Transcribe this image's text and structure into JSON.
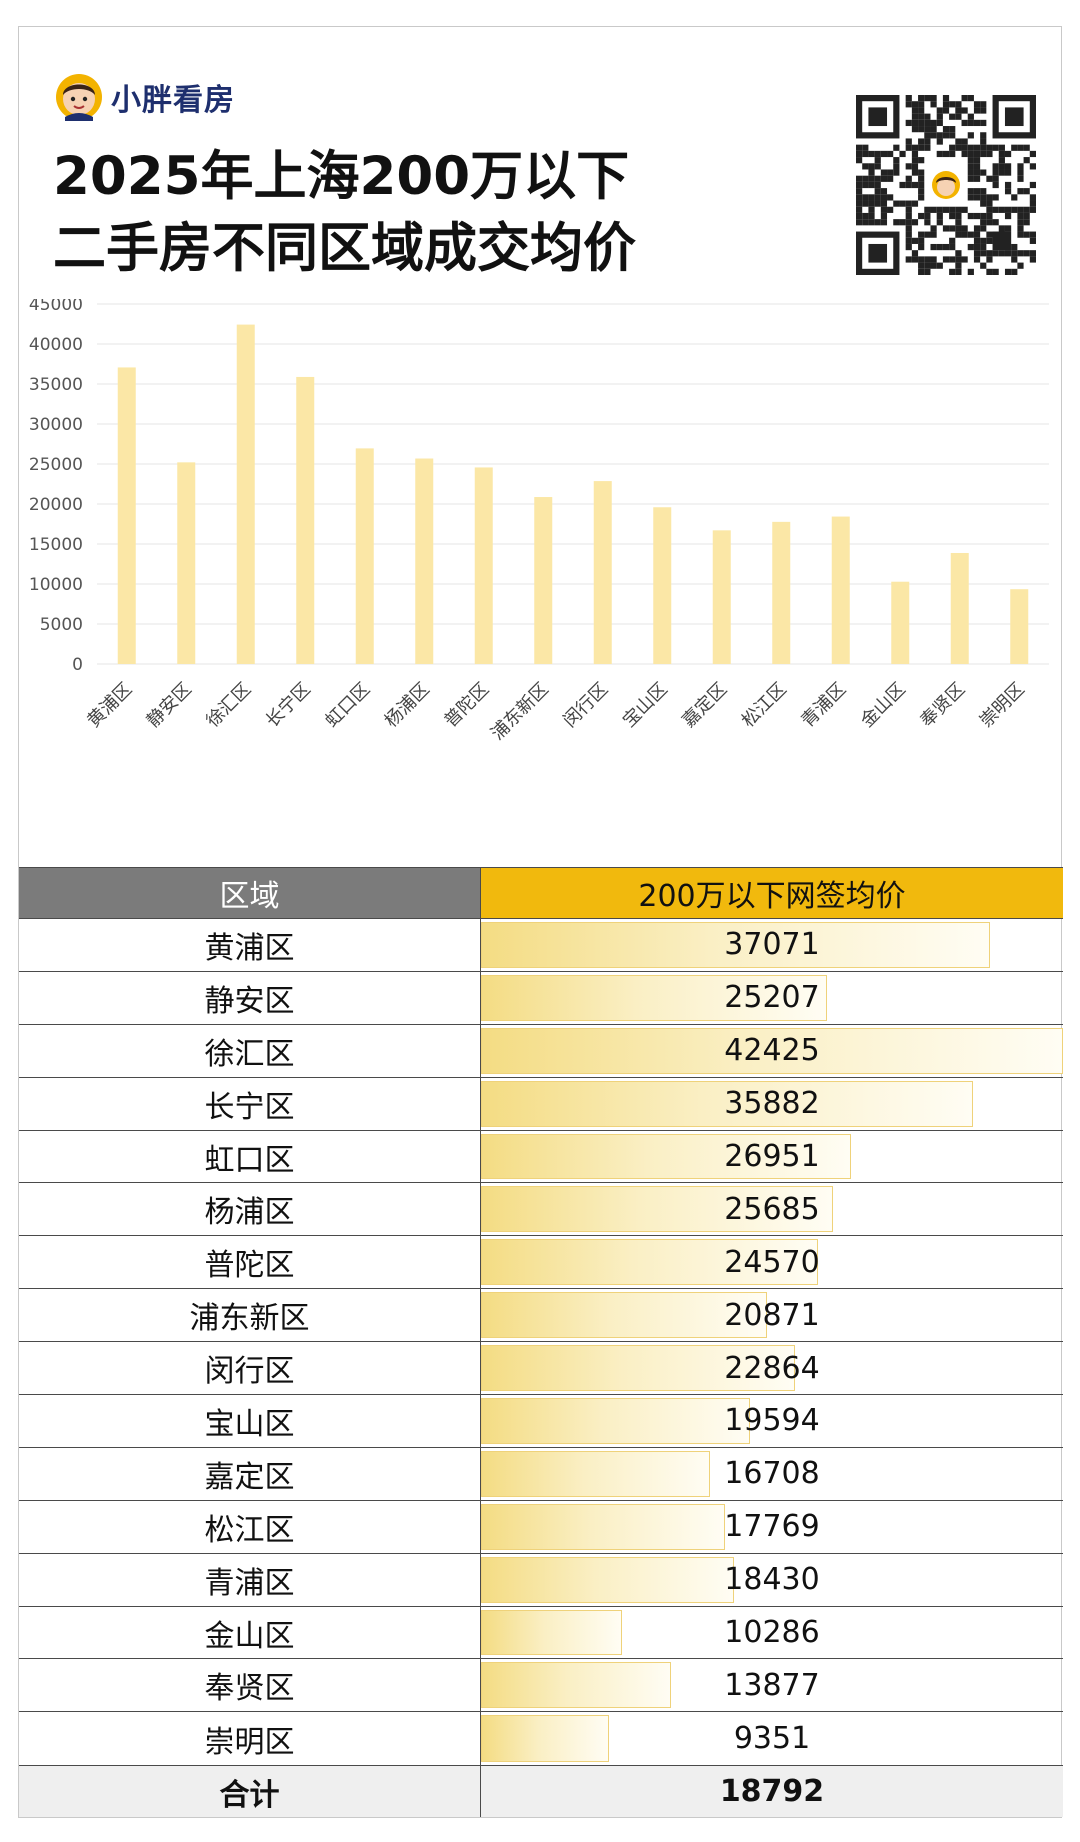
{
  "brand": {
    "name": "小胖看房",
    "logo_icon": "cartoon-avatar-icon"
  },
  "title": {
    "line1": "2025年上海200万以下",
    "line2": "二手房不同区域成交均价"
  },
  "qr_icon": "qr-code-icon",
  "colors": {
    "bar": "#fbe7a6",
    "header_name_bg": "#7b7b7b",
    "header_val_bg": "#f1b90d",
    "brand": "#1e2f6e",
    "grid": "#e6e6e6"
  },
  "chart_data": {
    "type": "bar",
    "categories": [
      "黄浦区",
      "静安区",
      "徐汇区",
      "长宁区",
      "虹口区",
      "杨浦区",
      "普陀区",
      "浦东新区",
      "闵行区",
      "宝山区",
      "嘉定区",
      "松江区",
      "青浦区",
      "金山区",
      "奉贤区",
      "崇明区"
    ],
    "values": [
      37071,
      25207,
      42425,
      35882,
      26951,
      25685,
      24570,
      20871,
      22864,
      19594,
      16708,
      17769,
      18430,
      10286,
      13877,
      9351
    ],
    "y_ticks": [
      0,
      5000,
      10000,
      15000,
      20000,
      25000,
      30000,
      35000,
      40000,
      45000
    ],
    "ylim": [
      0,
      45000
    ],
    "grid": true,
    "title": "",
    "xlabel": "",
    "ylabel": ""
  },
  "table": {
    "header": {
      "name": "区域",
      "value": "200万以下网签均价"
    },
    "rows": [
      {
        "name": "黄浦区",
        "value": "37071"
      },
      {
        "name": "静安区",
        "value": "25207"
      },
      {
        "name": "徐汇区",
        "value": "42425"
      },
      {
        "name": "长宁区",
        "value": "35882"
      },
      {
        "name": "虹口区",
        "value": "26951"
      },
      {
        "name": "杨浦区",
        "value": "25685"
      },
      {
        "name": "普陀区",
        "value": "24570"
      },
      {
        "name": "浦东新区",
        "value": "20871"
      },
      {
        "name": "闵行区",
        "value": "22864"
      },
      {
        "name": "宝山区",
        "value": "19594"
      },
      {
        "name": "嘉定区",
        "value": "16708"
      },
      {
        "name": "松江区",
        "value": "17769"
      },
      {
        "name": "青浦区",
        "value": "18430"
      },
      {
        "name": "金山区",
        "value": "10286"
      },
      {
        "name": "奉贤区",
        "value": "13877"
      },
      {
        "name": "崇明区",
        "value": "9351"
      }
    ],
    "total": {
      "name": "合计",
      "value": "18792"
    }
  }
}
